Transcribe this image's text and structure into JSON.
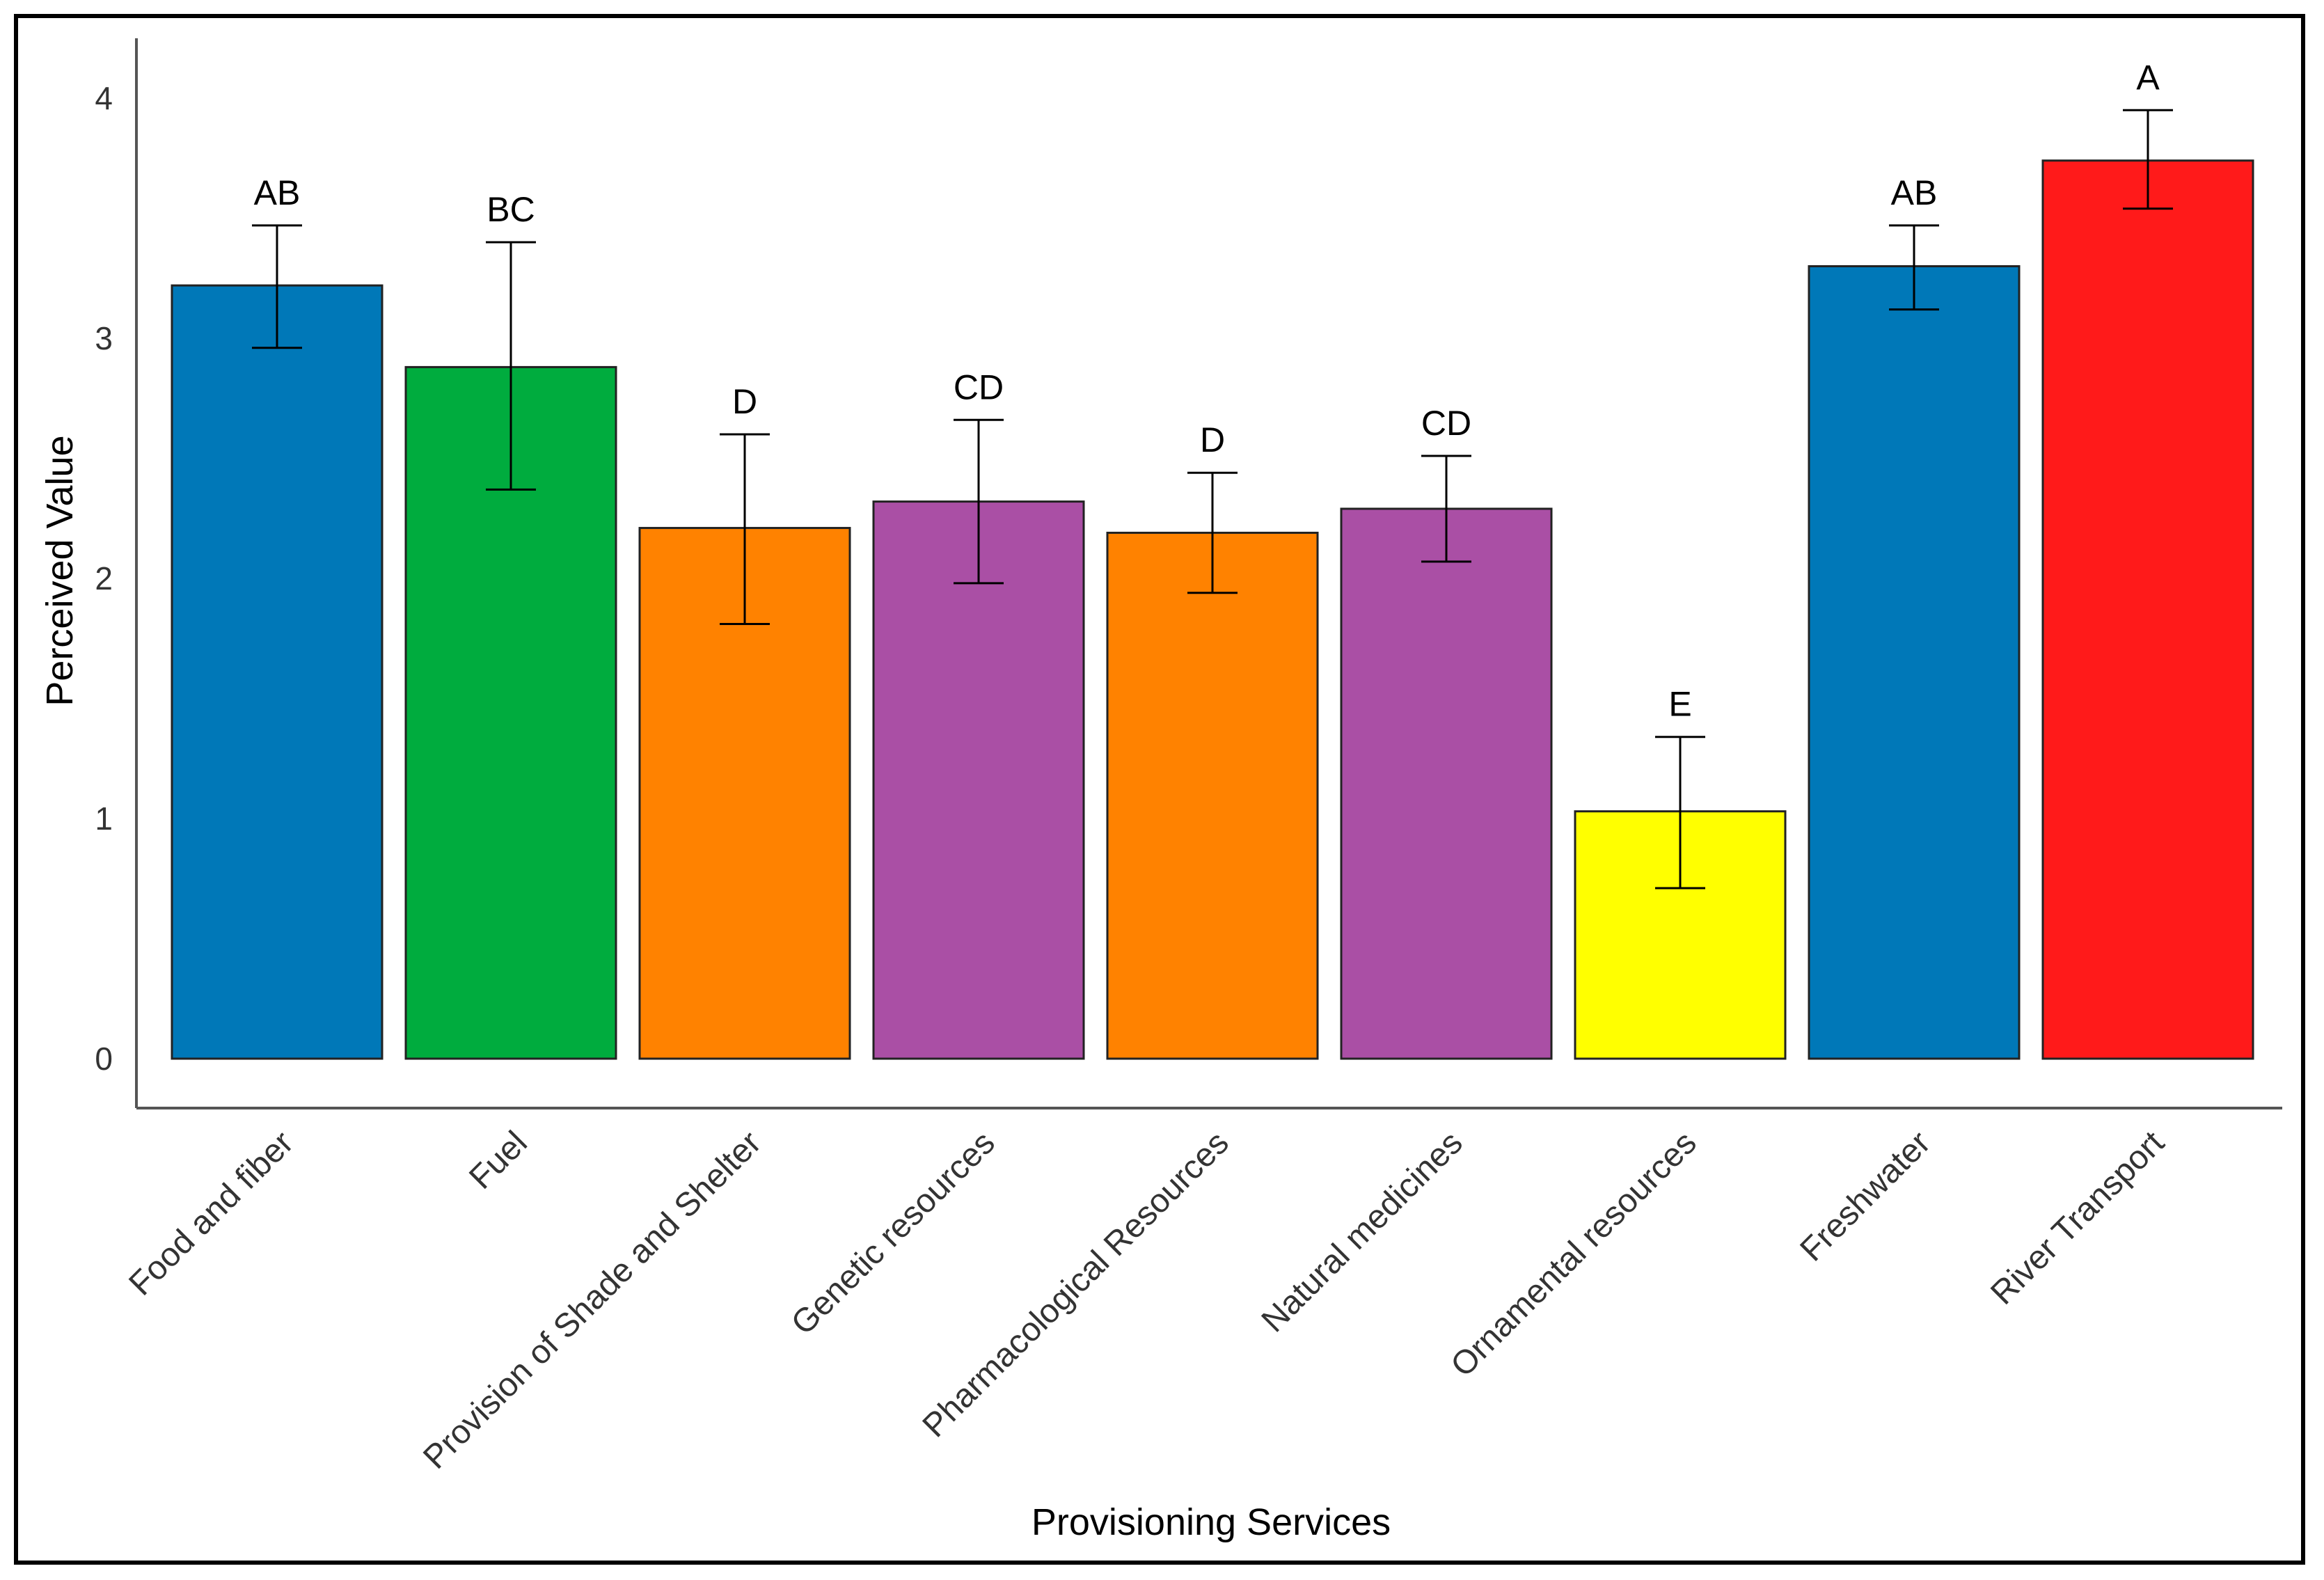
{
  "chart_data": {
    "type": "bar",
    "title": "",
    "xlabel": "Provisioning Services",
    "ylabel": "Perceived Value",
    "ylim": [
      0,
      4.25
    ],
    "yticks": [
      "0",
      "1",
      "2",
      "3",
      "4"
    ],
    "grid": false,
    "categories": [
      "Food and fiber",
      "Fuel",
      "Provision of Shade and Shelter",
      "Genetic resources",
      "Pharmacological Resources",
      "Natural medicines",
      "Ornamental resources",
      "Freshwater",
      "River Transport"
    ],
    "values": [
      3.22,
      2.88,
      2.21,
      2.32,
      2.19,
      2.29,
      1.03,
      3.3,
      3.74
    ],
    "error_low": [
      2.96,
      2.37,
      1.81,
      1.98,
      1.94,
      2.07,
      0.71,
      3.12,
      3.54
    ],
    "error_high": [
      3.47,
      3.4,
      2.6,
      2.66,
      2.44,
      2.51,
      1.34,
      3.47,
      3.95
    ],
    "significance_letters": [
      "AB",
      "BC",
      "D",
      "CD",
      "D",
      "CD",
      "E",
      "AB",
      "A"
    ],
    "colors": [
      "#0078B8",
      "#00AC3E",
      "#FF8200",
      "#AA4FA5",
      "#FF8200",
      "#AA4FA5",
      "#FFFF00",
      "#0078B8",
      "#FF1A1A"
    ]
  }
}
